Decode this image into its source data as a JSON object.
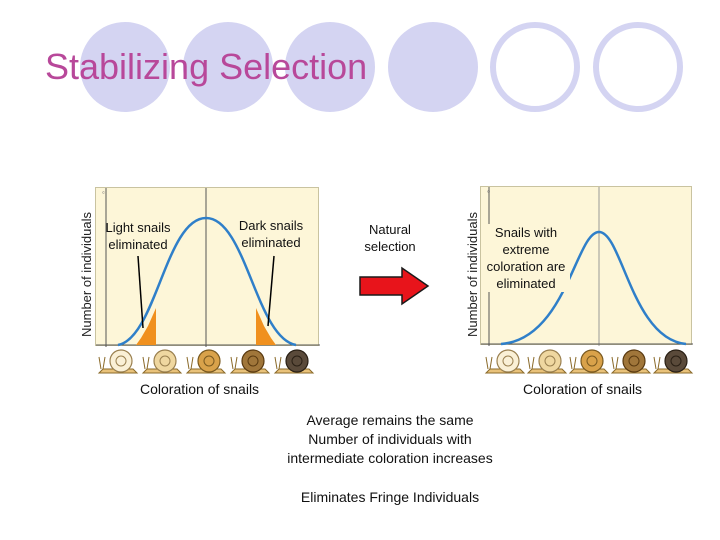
{
  "slide": {
    "title": "Stabilizing Selection"
  },
  "left_graph": {
    "ylabel": "Number of individuals",
    "xlabel": "Coloration of snails",
    "light_label": "Light snails eliminated",
    "dark_label": "Dark snails eliminated"
  },
  "arrow": {
    "label": "Natural selection",
    "color": "#e8141b"
  },
  "right_graph": {
    "ylabel": "Number of individuals",
    "xlabel": "Coloration of snails",
    "label": "Snails with extreme coloration are eliminated"
  },
  "notes": {
    "line1": "Average remains the same",
    "line2": "Number of individuals with",
    "line3": "intermediate coloration increases",
    "line4": "Eliminates Fringe Individuals"
  },
  "colors": {
    "curve": "#2f7fc9",
    "eliminated_fill": "#f0901e",
    "panel": "#fdf6d8",
    "decor_circles": "#d4d4f2",
    "title": "#b8489a"
  },
  "icons": [
    "snail-icon"
  ]
}
